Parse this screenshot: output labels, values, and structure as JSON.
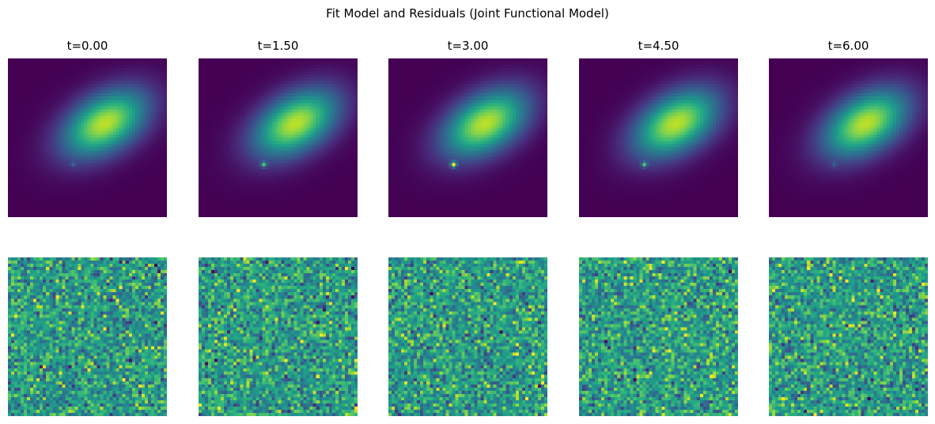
{
  "figure": {
    "title": "Fit Model and Residuals (Joint Functional Model)"
  },
  "chart_data": {
    "type": "heatmap",
    "colormap": "viridis",
    "title": "Fit Model and Residuals (Joint Functional Model)",
    "grid": false,
    "axes_visible": false,
    "image_size": [
      50,
      50
    ],
    "rows": [
      {
        "row": "model",
        "description_in_image": ""
      },
      {
        "row": "residuals",
        "description_in_image": ""
      }
    ],
    "panels": [
      {
        "label": "t=0.00",
        "t": 0.0,
        "point_source_amplitude": 0.15
      },
      {
        "label": "t=1.50",
        "t": 1.5,
        "point_source_amplitude": 0.55
      },
      {
        "label": "t=3.00",
        "t": 3.0,
        "point_source_amplitude": 0.95
      },
      {
        "label": "t=4.50",
        "t": 4.5,
        "point_source_amplitude": 0.55
      },
      {
        "label": "t=6.00",
        "t": 6.0,
        "point_source_amplitude": 0.15
      }
    ],
    "galaxy_peak": 0.9,
    "point_source_position": [
      20,
      33
    ]
  }
}
